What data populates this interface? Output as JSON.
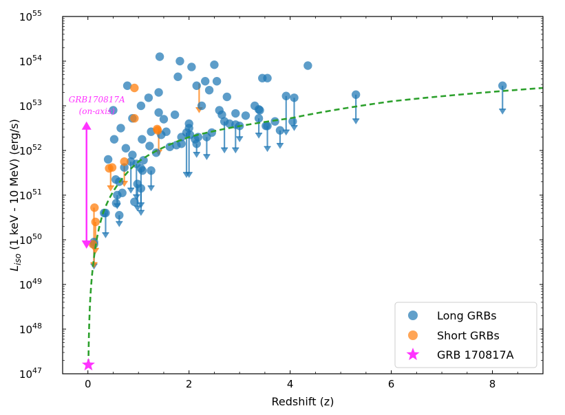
{
  "chart_data": {
    "type": "scatter",
    "xlabel": "Redshift (z)",
    "ylabel": "L_iso (1 keV - 10 MeV) (erg/s)",
    "ylabel_main": "L",
    "ylabel_sub": "iso",
    "ylabel_rest": " (1 keV - 10 MeV) (erg/s)",
    "xlim": [
      -0.5,
      9.0
    ],
    "ylim_log10": [
      47,
      55
    ],
    "y_scale": "log",
    "x_ticks": [
      0,
      2,
      4,
      6,
      8
    ],
    "x_tick_labels": [
      "0",
      "2",
      "4",
      "6",
      "8"
    ],
    "y_ticks": [
      47,
      48,
      49,
      50,
      51,
      52,
      53,
      54,
      55
    ],
    "y_tick_labels": [
      "10",
      "10",
      "10",
      "10",
      "10",
      "10",
      "10",
      "10",
      "10"
    ],
    "y_tick_exponents": [
      "47",
      "48",
      "49",
      "50",
      "51",
      "52",
      "53",
      "54",
      "55"
    ],
    "legend_position": "bottom-right",
    "colors": {
      "long": "#1f77b4",
      "short": "#ff7f0e",
      "grb170817a": "#ff33ff",
      "threshold": "#2ca02c"
    },
    "series": [
      {
        "name": "Long GRBs",
        "marker": "circle",
        "detections": [
          [
            1.42,
            54.1
          ],
          [
            1.82,
            54.0
          ],
          [
            2.05,
            53.87
          ],
          [
            2.5,
            53.92
          ],
          [
            4.35,
            53.9
          ],
          [
            1.78,
            53.65
          ],
          [
            2.32,
            53.55
          ],
          [
            2.15,
            53.45
          ],
          [
            2.55,
            53.55
          ],
          [
            3.55,
            53.62
          ],
          [
            3.45,
            53.62
          ],
          [
            1.4,
            53.3
          ],
          [
            1.2,
            53.18
          ],
          [
            2.4,
            53.35
          ],
          [
            2.75,
            53.2
          ],
          [
            0.78,
            53.45
          ],
          [
            1.05,
            53.0
          ],
          [
            1.4,
            52.85
          ],
          [
            1.72,
            52.8
          ],
          [
            2.25,
            53.0
          ],
          [
            2.6,
            52.9
          ],
          [
            2.92,
            52.83
          ],
          [
            3.3,
            53.0
          ],
          [
            3.12,
            52.78
          ],
          [
            3.38,
            52.92
          ],
          [
            0.5,
            52.9
          ],
          [
            0.65,
            52.5
          ],
          [
            0.88,
            52.72
          ],
          [
            1.5,
            52.7
          ],
          [
            1.55,
            52.42
          ],
          [
            1.25,
            52.42
          ],
          [
            1.07,
            52.25
          ],
          [
            1.45,
            52.35
          ],
          [
            1.85,
            52.3
          ],
          [
            2.0,
            52.6
          ],
          [
            2.02,
            52.35
          ],
          [
            2.18,
            52.3
          ],
          [
            2.45,
            52.4
          ],
          [
            2.65,
            52.8
          ],
          [
            2.8,
            52.6
          ],
          [
            3.4,
            52.9
          ],
          [
            3.52,
            52.55
          ],
          [
            3.7,
            52.65
          ],
          [
            4.05,
            52.65
          ],
          [
            0.52,
            52.25
          ],
          [
            0.75,
            52.05
          ],
          [
            0.88,
            51.9
          ],
          [
            1.22,
            52.1
          ],
          [
            1.35,
            51.95
          ],
          [
            1.62,
            52.08
          ],
          [
            1.75,
            52.12
          ],
          [
            1.85,
            52.15
          ],
          [
            2.12,
            52.25
          ],
          [
            0.4,
            51.8
          ],
          [
            0.72,
            51.62
          ],
          [
            0.55,
            51.35
          ],
          [
            0.62,
            51.3
          ],
          [
            1.08,
            51.55
          ],
          [
            1.1,
            51.78
          ],
          [
            0.68,
            51.05
          ],
          [
            0.56,
            50.82
          ],
          [
            0.92,
            50.85
          ],
          [
            0.32,
            50.6
          ],
          [
            0.12,
            49.95
          ]
        ],
        "upper_limits": [
          [
            0.85,
            51.75,
            51.05
          ],
          [
            0.96,
            51.7,
            50.9
          ],
          [
            1.05,
            51.6,
            50.72
          ],
          [
            1.05,
            51.15,
            50.55
          ],
          [
            1.25,
            51.55,
            51.1
          ],
          [
            0.98,
            51.25,
            50.65
          ],
          [
            1.95,
            52.4,
            51.4
          ],
          [
            2.0,
            52.5,
            51.4
          ],
          [
            2.15,
            52.15,
            51.85
          ],
          [
            2.35,
            52.3,
            51.8
          ],
          [
            2.7,
            52.65,
            51.95
          ],
          [
            2.92,
            52.58,
            51.95
          ],
          [
            3.0,
            52.55,
            52.2
          ],
          [
            3.38,
            52.72,
            52.28
          ],
          [
            3.55,
            52.55,
            51.98
          ],
          [
            3.8,
            52.45,
            52.05
          ],
          [
            3.92,
            53.22,
            52.35
          ],
          [
            4.08,
            53.18,
            52.45
          ],
          [
            5.3,
            53.25,
            52.6
          ],
          [
            8.2,
            53.45,
            52.82
          ],
          [
            0.58,
            51.0,
            50.7
          ],
          [
            0.62,
            50.55,
            50.3
          ],
          [
            0.35,
            50.6,
            50.05
          ],
          [
            0.12,
            49.9,
            49.35
          ]
        ]
      },
      {
        "name": "Short GRBs",
        "marker": "circle",
        "detections": [
          [
            0.92,
            53.4
          ],
          [
            0.92,
            52.72
          ],
          [
            1.37,
            52.48
          ],
          [
            1.38,
            52.45
          ],
          [
            0.48,
            51.62
          ],
          [
            0.42,
            51.6
          ],
          [
            0.72,
            51.75
          ],
          [
            0.13,
            50.72
          ],
          [
            0.15,
            50.4
          ],
          [
            0.1,
            49.9
          ]
        ],
        "upper_limits": [
          [
            2.2,
            53.5,
            52.85
          ],
          [
            1.4,
            52.5,
            51.9
          ],
          [
            0.45,
            51.65,
            51.1
          ],
          [
            0.72,
            51.7,
            51.2
          ],
          [
            0.12,
            50.72,
            49.38
          ],
          [
            0.15,
            50.4,
            49.7
          ]
        ]
      },
      {
        "name": "GRB 170817A",
        "marker": "star",
        "points": [
          [
            0.0098,
            47.2
          ]
        ]
      }
    ],
    "threshold_curve": {
      "name": "detection threshold",
      "style": "dashed",
      "anchors": [
        [
          0.01,
          47.2
        ],
        [
          0.1,
          49.4
        ],
        [
          0.3,
          50.6
        ],
        [
          0.6,
          51.25
        ],
        [
          1.0,
          51.75
        ],
        [
          2.0,
          52.3
        ],
        [
          4.0,
          52.72
        ],
        [
          6.0,
          53.1
        ],
        [
          9.0,
          53.4
        ]
      ]
    },
    "annotation": {
      "lines": [
        "GRB170817A",
        "(on-axis)"
      ],
      "x": 0.0,
      "y_top_log10": 52.65,
      "y_bottom_log10": 49.8
    }
  }
}
